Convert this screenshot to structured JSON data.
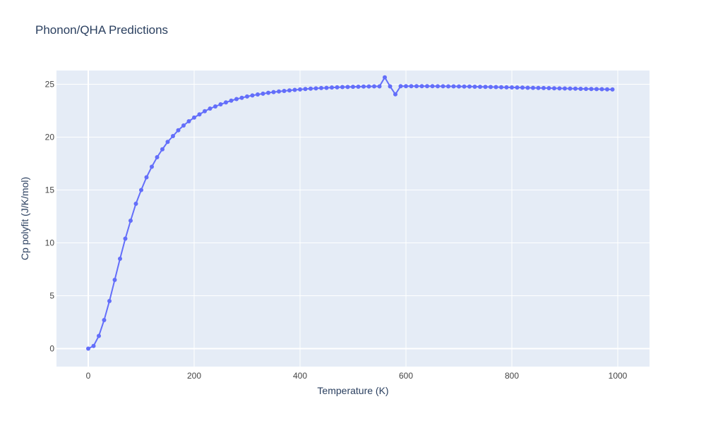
{
  "chart_data": {
    "type": "line",
    "title": "Phonon/QHA Predictions",
    "xlabel": "Temperature (K)",
    "ylabel": "Cp polyfit (J/K/mol)",
    "xlim": [
      -60,
      1060
    ],
    "ylim": [
      -1.7,
      26.3
    ],
    "x_ticks": [
      0,
      200,
      400,
      600,
      800,
      1000
    ],
    "y_ticks": [
      0,
      5,
      10,
      15,
      20,
      25
    ],
    "grid": true,
    "legend": "none",
    "colors": {
      "series": "#636efa",
      "plot_bg": "#e5ecf6",
      "grid": "#ffffff",
      "text": "#2a3f5f",
      "tick_text": "#444444"
    },
    "series": [
      {
        "x": [
          0,
          10,
          20,
          30,
          40,
          50,
          60,
          70,
          80,
          90,
          100,
          110,
          120,
          130,
          140,
          150,
          160,
          170,
          180,
          190,
          200,
          210,
          220,
          230,
          240,
          250,
          260,
          270,
          280,
          290,
          300,
          310,
          320,
          330,
          340,
          350,
          360,
          370,
          380,
          390,
          400,
          410,
          420,
          430,
          440,
          450,
          460,
          470,
          480,
          490,
          500,
          510,
          520,
          530,
          540,
          550,
          560,
          570,
          580,
          590,
          600,
          610,
          620,
          630,
          640,
          650,
          660,
          670,
          680,
          690,
          700,
          710,
          720,
          730,
          740,
          750,
          760,
          770,
          780,
          790,
          800,
          810,
          820,
          830,
          840,
          850,
          860,
          870,
          880,
          890,
          900,
          910,
          920,
          930,
          940,
          950,
          960,
          970,
          980,
          990
        ],
        "y": [
          0,
          0.25,
          1.2,
          2.7,
          4.5,
          6.5,
          8.5,
          10.4,
          12.1,
          13.7,
          15.0,
          16.2,
          17.2,
          18.1,
          18.85,
          19.55,
          20.1,
          20.65,
          21.1,
          21.5,
          21.85,
          22.15,
          22.45,
          22.7,
          22.9,
          23.1,
          23.28,
          23.45,
          23.6,
          23.72,
          23.84,
          23.94,
          24.03,
          24.11,
          24.19,
          24.26,
          24.32,
          24.37,
          24.42,
          24.47,
          24.51,
          24.55,
          24.58,
          24.61,
          24.64,
          24.66,
          24.69,
          24.71,
          24.73,
          24.74,
          24.76,
          24.77,
          24.78,
          24.79,
          24.8,
          24.8,
          25.65,
          24.8,
          24.05,
          24.82,
          24.82,
          24.82,
          24.82,
          24.82,
          24.82,
          24.82,
          24.81,
          24.81,
          24.8,
          24.8,
          24.79,
          24.78,
          24.78,
          24.77,
          24.76,
          24.75,
          24.74,
          24.73,
          24.72,
          24.71,
          24.7,
          24.69,
          24.68,
          24.67,
          24.66,
          24.65,
          24.64,
          24.63,
          24.62,
          24.61,
          24.6,
          24.59,
          24.58,
          24.57,
          24.56,
          24.55,
          24.54,
          24.53,
          24.52,
          24.51
        ]
      }
    ]
  }
}
